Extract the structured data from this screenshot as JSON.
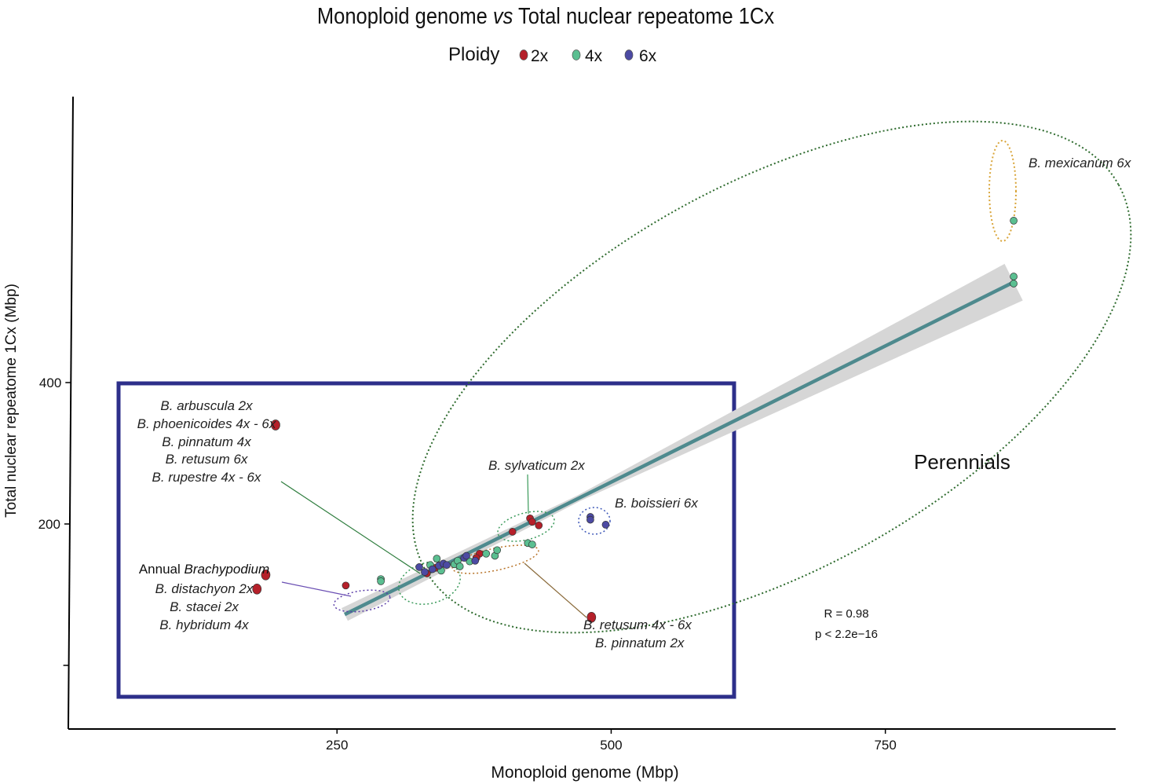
{
  "chart_data": {
    "type": "scatter",
    "title_pre": "Monoploid genome ",
    "title_vs": "vs",
    "title_post": " Total nuclear repeatome 1Cx",
    "xlabel": "Monoploid genome (Mbp)",
    "ylabel": "Total nuclear repeatome 1Cx (Mbp)",
    "xlim": [
      5,
      960
    ],
    "ylim": [
      -90,
      810
    ],
    "xticks": [
      250,
      500,
      750
    ],
    "yticks": [
      0,
      200,
      400
    ],
    "ytick_labels": [
      "",
      "200",
      "400"
    ],
    "legend": {
      "title": "Ploidy",
      "position": "top",
      "entries": [
        {
          "label": "2x",
          "color": "#b5202a"
        },
        {
          "label": "4x",
          "color": "#5bbf91"
        },
        {
          "label": "6x",
          "color": "#4c4aa3"
        }
      ]
    },
    "regression": {
      "x0": 257,
      "y0": 72,
      "x1": 867,
      "y1": 542,
      "ci_color": "#d6d6d6",
      "line_color": "#4e8a8e"
    },
    "stats": {
      "r": "R = 0.98",
      "p": "p < 2.2e−16"
    },
    "series": [
      {
        "name": "2x",
        "color": "#b5202a",
        "points": [
          {
            "x": 194,
            "y": 340
          },
          {
            "x": 185,
            "y": 128
          },
          {
            "x": 177,
            "y": 108
          },
          {
            "x": 258,
            "y": 113
          },
          {
            "x": 482,
            "y": 68
          },
          {
            "x": 426,
            "y": 208
          },
          {
            "x": 428,
            "y": 203
          },
          {
            "x": 434,
            "y": 198
          },
          {
            "x": 410,
            "y": 189
          },
          {
            "x": 380,
            "y": 158
          },
          {
            "x": 377,
            "y": 152
          },
          {
            "x": 332,
            "y": 130
          },
          {
            "x": 340,
            "y": 138
          }
        ]
      },
      {
        "name": "4x",
        "color": "#5bbf91",
        "points": [
          {
            "x": 867,
            "y": 629
          },
          {
            "x": 867,
            "y": 550
          },
          {
            "x": 867,
            "y": 540
          },
          {
            "x": 290,
            "y": 122
          },
          {
            "x": 290,
            "y": 119
          },
          {
            "x": 341,
            "y": 151
          },
          {
            "x": 335,
            "y": 142
          },
          {
            "x": 345,
            "y": 134
          },
          {
            "x": 357,
            "y": 143
          },
          {
            "x": 360,
            "y": 148
          },
          {
            "x": 362,
            "y": 140
          },
          {
            "x": 386,
            "y": 158
          },
          {
            "x": 394,
            "y": 155
          },
          {
            "x": 396,
            "y": 163
          },
          {
            "x": 424,
            "y": 173
          },
          {
            "x": 428,
            "y": 171
          },
          {
            "x": 371,
            "y": 147
          }
        ]
      },
      {
        "name": "6x",
        "color": "#4c4aa3",
        "points": [
          {
            "x": 325,
            "y": 139
          },
          {
            "x": 330,
            "y": 132
          },
          {
            "x": 337,
            "y": 136
          },
          {
            "x": 343,
            "y": 141
          },
          {
            "x": 347,
            "y": 144
          },
          {
            "x": 350,
            "y": 142
          },
          {
            "x": 366,
            "y": 152
          },
          {
            "x": 368,
            "y": 155
          },
          {
            "x": 376,
            "y": 148
          },
          {
            "x": 481,
            "y": 210
          },
          {
            "x": 481,
            "y": 206
          },
          {
            "x": 495,
            "y": 199
          }
        ]
      }
    ],
    "groups": [
      {
        "label": "B. mexicanum  6x"
      },
      {
        "lines": [
          "B. arbuscula 2x",
          "B. phoenicoides 4x - 6x",
          "B. pinnatum 4x",
          "B. retusum 6x",
          "B. rupestre 4x - 6x"
        ]
      },
      {
        "label": "B. sylvaticum 2x"
      },
      {
        "label": "B. boissieri  6x"
      },
      {
        "annual_pre": "Annual ",
        "annual_em": "Brachypodium",
        "lines": [
          "B. distachyon 2x",
          "B. stacei 2x",
          "B. hybridum 4x"
        ]
      },
      {
        "lines": [
          "B. retusum 4x - 6x",
          "B. pinnatum 2x"
        ]
      }
    ],
    "region_label": "Perennials"
  }
}
